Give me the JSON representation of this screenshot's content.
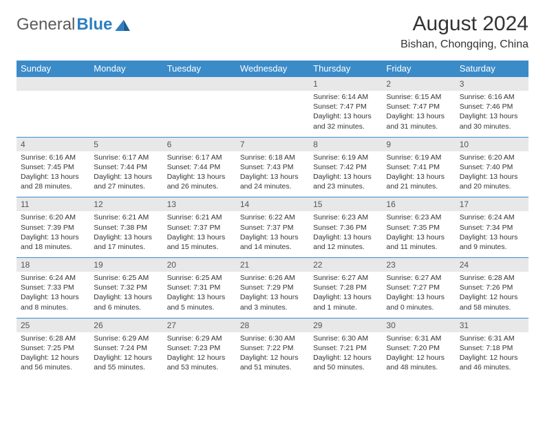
{
  "logo": {
    "text1": "General",
    "text2": "Blue"
  },
  "title": "August 2024",
  "location": "Bishan, Chongqing, China",
  "colors": {
    "header_bg": "#3b8bc9",
    "header_text": "#ffffff",
    "date_bg": "#e8e8e8",
    "border": "#3b8bc9",
    "logo_gray": "#5a5a5a",
    "logo_blue": "#2e7fc1"
  },
  "daysOfWeek": [
    "Sunday",
    "Monday",
    "Tuesday",
    "Wednesday",
    "Thursday",
    "Friday",
    "Saturday"
  ],
  "weeks": [
    {
      "dates": [
        "",
        "",
        "",
        "",
        "1",
        "2",
        "3"
      ],
      "cells": [
        null,
        null,
        null,
        null,
        {
          "sunrise": "Sunrise: 6:14 AM",
          "sunset": "Sunset: 7:47 PM",
          "day1": "Daylight: 13 hours",
          "day2": "and 32 minutes."
        },
        {
          "sunrise": "Sunrise: 6:15 AM",
          "sunset": "Sunset: 7:47 PM",
          "day1": "Daylight: 13 hours",
          "day2": "and 31 minutes."
        },
        {
          "sunrise": "Sunrise: 6:16 AM",
          "sunset": "Sunset: 7:46 PM",
          "day1": "Daylight: 13 hours",
          "day2": "and 30 minutes."
        }
      ]
    },
    {
      "dates": [
        "4",
        "5",
        "6",
        "7",
        "8",
        "9",
        "10"
      ],
      "cells": [
        {
          "sunrise": "Sunrise: 6:16 AM",
          "sunset": "Sunset: 7:45 PM",
          "day1": "Daylight: 13 hours",
          "day2": "and 28 minutes."
        },
        {
          "sunrise": "Sunrise: 6:17 AM",
          "sunset": "Sunset: 7:44 PM",
          "day1": "Daylight: 13 hours",
          "day2": "and 27 minutes."
        },
        {
          "sunrise": "Sunrise: 6:17 AM",
          "sunset": "Sunset: 7:44 PM",
          "day1": "Daylight: 13 hours",
          "day2": "and 26 minutes."
        },
        {
          "sunrise": "Sunrise: 6:18 AM",
          "sunset": "Sunset: 7:43 PM",
          "day1": "Daylight: 13 hours",
          "day2": "and 24 minutes."
        },
        {
          "sunrise": "Sunrise: 6:19 AM",
          "sunset": "Sunset: 7:42 PM",
          "day1": "Daylight: 13 hours",
          "day2": "and 23 minutes."
        },
        {
          "sunrise": "Sunrise: 6:19 AM",
          "sunset": "Sunset: 7:41 PM",
          "day1": "Daylight: 13 hours",
          "day2": "and 21 minutes."
        },
        {
          "sunrise": "Sunrise: 6:20 AM",
          "sunset": "Sunset: 7:40 PM",
          "day1": "Daylight: 13 hours",
          "day2": "and 20 minutes."
        }
      ]
    },
    {
      "dates": [
        "11",
        "12",
        "13",
        "14",
        "15",
        "16",
        "17"
      ],
      "cells": [
        {
          "sunrise": "Sunrise: 6:20 AM",
          "sunset": "Sunset: 7:39 PM",
          "day1": "Daylight: 13 hours",
          "day2": "and 18 minutes."
        },
        {
          "sunrise": "Sunrise: 6:21 AM",
          "sunset": "Sunset: 7:38 PM",
          "day1": "Daylight: 13 hours",
          "day2": "and 17 minutes."
        },
        {
          "sunrise": "Sunrise: 6:21 AM",
          "sunset": "Sunset: 7:37 PM",
          "day1": "Daylight: 13 hours",
          "day2": "and 15 minutes."
        },
        {
          "sunrise": "Sunrise: 6:22 AM",
          "sunset": "Sunset: 7:37 PM",
          "day1": "Daylight: 13 hours",
          "day2": "and 14 minutes."
        },
        {
          "sunrise": "Sunrise: 6:23 AM",
          "sunset": "Sunset: 7:36 PM",
          "day1": "Daylight: 13 hours",
          "day2": "and 12 minutes."
        },
        {
          "sunrise": "Sunrise: 6:23 AM",
          "sunset": "Sunset: 7:35 PM",
          "day1": "Daylight: 13 hours",
          "day2": "and 11 minutes."
        },
        {
          "sunrise": "Sunrise: 6:24 AM",
          "sunset": "Sunset: 7:34 PM",
          "day1": "Daylight: 13 hours",
          "day2": "and 9 minutes."
        }
      ]
    },
    {
      "dates": [
        "18",
        "19",
        "20",
        "21",
        "22",
        "23",
        "24"
      ],
      "cells": [
        {
          "sunrise": "Sunrise: 6:24 AM",
          "sunset": "Sunset: 7:33 PM",
          "day1": "Daylight: 13 hours",
          "day2": "and 8 minutes."
        },
        {
          "sunrise": "Sunrise: 6:25 AM",
          "sunset": "Sunset: 7:32 PM",
          "day1": "Daylight: 13 hours",
          "day2": "and 6 minutes."
        },
        {
          "sunrise": "Sunrise: 6:25 AM",
          "sunset": "Sunset: 7:31 PM",
          "day1": "Daylight: 13 hours",
          "day2": "and 5 minutes."
        },
        {
          "sunrise": "Sunrise: 6:26 AM",
          "sunset": "Sunset: 7:29 PM",
          "day1": "Daylight: 13 hours",
          "day2": "and 3 minutes."
        },
        {
          "sunrise": "Sunrise: 6:27 AM",
          "sunset": "Sunset: 7:28 PM",
          "day1": "Daylight: 13 hours",
          "day2": "and 1 minute."
        },
        {
          "sunrise": "Sunrise: 6:27 AM",
          "sunset": "Sunset: 7:27 PM",
          "day1": "Daylight: 13 hours",
          "day2": "and 0 minutes."
        },
        {
          "sunrise": "Sunrise: 6:28 AM",
          "sunset": "Sunset: 7:26 PM",
          "day1": "Daylight: 12 hours",
          "day2": "and 58 minutes."
        }
      ]
    },
    {
      "dates": [
        "25",
        "26",
        "27",
        "28",
        "29",
        "30",
        "31"
      ],
      "cells": [
        {
          "sunrise": "Sunrise: 6:28 AM",
          "sunset": "Sunset: 7:25 PM",
          "day1": "Daylight: 12 hours",
          "day2": "and 56 minutes."
        },
        {
          "sunrise": "Sunrise: 6:29 AM",
          "sunset": "Sunset: 7:24 PM",
          "day1": "Daylight: 12 hours",
          "day2": "and 55 minutes."
        },
        {
          "sunrise": "Sunrise: 6:29 AM",
          "sunset": "Sunset: 7:23 PM",
          "day1": "Daylight: 12 hours",
          "day2": "and 53 minutes."
        },
        {
          "sunrise": "Sunrise: 6:30 AM",
          "sunset": "Sunset: 7:22 PM",
          "day1": "Daylight: 12 hours",
          "day2": "and 51 minutes."
        },
        {
          "sunrise": "Sunrise: 6:30 AM",
          "sunset": "Sunset: 7:21 PM",
          "day1": "Daylight: 12 hours",
          "day2": "and 50 minutes."
        },
        {
          "sunrise": "Sunrise: 6:31 AM",
          "sunset": "Sunset: 7:20 PM",
          "day1": "Daylight: 12 hours",
          "day2": "and 48 minutes."
        },
        {
          "sunrise": "Sunrise: 6:31 AM",
          "sunset": "Sunset: 7:18 PM",
          "day1": "Daylight: 12 hours",
          "day2": "and 46 minutes."
        }
      ]
    }
  ]
}
